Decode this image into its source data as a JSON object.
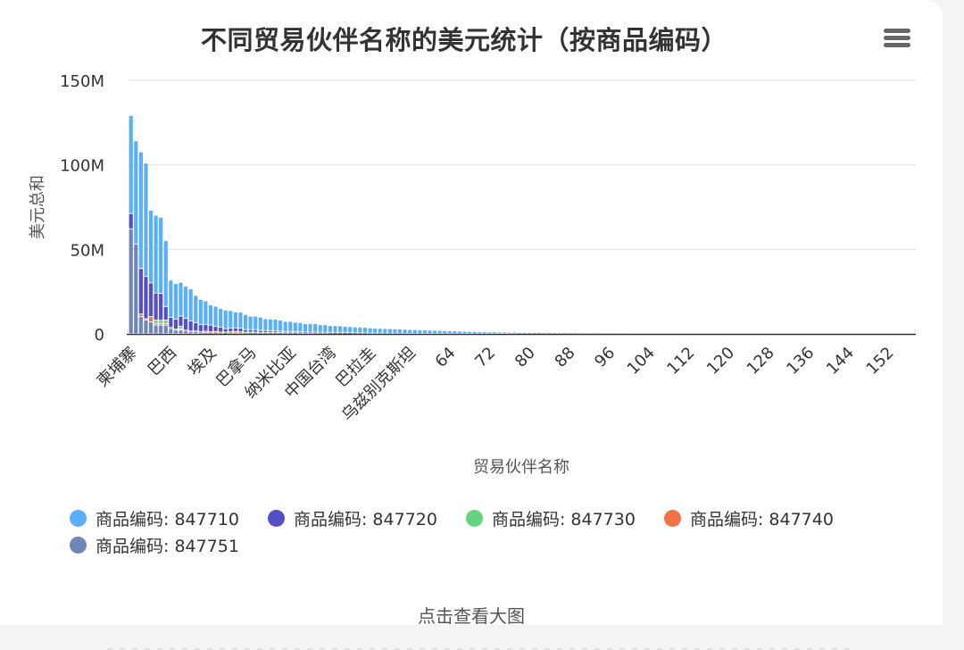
{
  "header": {
    "title": "不同贸易伙伴名称的美元统计（按商品编码）",
    "menu_icon": "hamburger-menu-icon"
  },
  "footer": {
    "view_large_label": "点击查看大图"
  },
  "chart_data": {
    "type": "bar",
    "stacked": true,
    "title": "不同贸易伙伴名称的美元统计（按商品编码）",
    "xlabel": "贸易伙伴名称",
    "ylabel": "美元总和",
    "ylim": [
      0,
      150000000
    ],
    "yticks": [
      "0",
      "50M",
      "100M",
      "150M"
    ],
    "grid": true,
    "legend_position": "bottom",
    "category_count": 160,
    "xtick_labels": [
      {
        "index": 0,
        "label": "柬埔寨"
      },
      {
        "index": 8,
        "label": "巴西"
      },
      {
        "index": 16,
        "label": "埃及"
      },
      {
        "index": 24,
        "label": "巴拿马"
      },
      {
        "index": 32,
        "label": "纳米比亚"
      },
      {
        "index": 40,
        "label": "中国台湾"
      },
      {
        "index": 48,
        "label": "巴拉圭"
      },
      {
        "index": 56,
        "label": "乌兹别克斯坦"
      },
      {
        "index": 64,
        "label": "64"
      },
      {
        "index": 72,
        "label": "72"
      },
      {
        "index": 80,
        "label": "80"
      },
      {
        "index": 88,
        "label": "88"
      },
      {
        "index": 96,
        "label": "96"
      },
      {
        "index": 104,
        "label": "104"
      },
      {
        "index": 112,
        "label": "112"
      },
      {
        "index": 120,
        "label": "120"
      },
      {
        "index": 128,
        "label": "128"
      },
      {
        "index": 136,
        "label": "136"
      },
      {
        "index": 144,
        "label": "144"
      },
      {
        "index": 152,
        "label": "152"
      }
    ],
    "series": [
      {
        "name": "商品编码: 847751",
        "color": "#6f86b9",
        "values": [
          62,
          53,
          10,
          8,
          7,
          5,
          5,
          5,
          3,
          2,
          2,
          1.5,
          1,
          1,
          0.8,
          0.6,
          0.5,
          0.4,
          0.3,
          0.3,
          0.2,
          0.2,
          0.2,
          0.1,
          0.1,
          0.1,
          0.1,
          0.1,
          0.1,
          0.1
        ]
      },
      {
        "name": "商品编码: 847740",
        "color": "#f07348",
        "values": [
          0,
          0,
          1.5,
          0.8,
          3,
          1,
          0.8,
          1,
          0.6,
          0.6,
          0.8,
          0.5,
          0.5,
          0.5,
          0.4,
          0.8,
          0.5,
          0.4,
          0.5,
          0.3,
          0.6,
          0.6,
          0.6,
          0.3,
          0.4,
          0.4,
          0.3,
          0.3,
          0.3,
          0.2,
          0.3,
          0.2,
          0.2,
          0.3,
          0.2,
          0.2,
          0.2,
          0.1,
          0.1,
          0.1,
          0.2,
          0.1,
          0.1,
          0.1,
          0.1
        ]
      },
      {
        "name": "商品编码: 847730",
        "color": "#66d37e",
        "values": [
          0,
          0,
          0,
          0,
          0,
          2,
          2,
          2,
          0,
          0,
          1.5,
          0,
          0,
          0,
          0,
          0,
          0,
          0.4,
          0,
          0.3,
          0.3,
          0.5,
          0.3,
          0.4,
          0.3,
          0.3,
          0.2,
          0.2,
          0.2,
          0.2,
          0.3,
          0.2,
          0.2,
          0.2,
          0.1,
          0.1,
          0.1,
          0.2,
          0.1,
          0.1,
          0.1,
          0.1,
          0.1,
          0.1,
          0.1,
          0.1,
          0.1,
          0.1
        ]
      },
      {
        "name": "商品编码: 847720",
        "color": "#544fc5",
        "values": [
          9,
          0,
          27,
          25,
          20,
          16,
          16,
          8,
          6,
          6,
          6,
          7,
          6,
          5,
          4,
          4,
          4,
          3,
          3,
          2,
          2,
          2,
          2,
          1.5,
          1.5,
          1.5,
          1.2,
          1.2,
          1,
          1,
          0.8,
          0.8,
          0.8,
          0.7,
          0.7,
          0.6,
          0.6,
          0.5,
          0.5,
          0.5,
          0.4,
          0.4,
          0.4,
          0.3,
          0.3,
          0.3,
          0.3,
          0.3,
          0.2,
          0.2,
          0.2,
          0.2,
          0.2,
          0.2,
          0.2,
          0.1,
          0.1,
          0.1,
          0.1,
          0.1,
          0.1,
          0.1,
          0.1,
          0.1,
          0.1,
          0.1
        ]
      },
      {
        "name": "商品编码: 847710",
        "color": "#5ab0f8",
        "values": [
          58,
          61,
          69,
          67,
          43,
          46,
          45,
          39,
          22,
          21,
          20,
          19,
          19,
          16,
          15,
          14,
          12,
          12,
          11,
          11,
          10.5,
          9.5,
          9.5,
          9,
          8,
          8,
          8,
          7,
          7,
          7,
          6.5,
          6,
          6,
          5.5,
          5.5,
          5,
          5,
          5,
          4.5,
          4.5,
          4,
          4,
          4,
          3.8,
          3.6,
          3.5,
          3.4,
          3.3,
          3.2,
          3,
          2.9,
          2.8,
          2.7,
          2.6,
          2.5,
          2.4,
          2.3,
          2.2,
          2.1,
          2.0,
          1.9,
          1.8,
          1.7,
          1.6,
          1.5,
          1.5,
          1.4,
          1.3,
          1.2,
          1.1,
          1.0,
          1.0,
          0.9,
          0.9,
          0.8,
          0.8,
          0.7,
          0.7,
          0.6,
          0.6,
          0.5,
          0.5,
          0.5,
          0.4,
          0.4,
          0.4,
          0.3,
          0.3,
          0.3,
          0.3,
          0.2,
          0.2,
          0.2,
          0.2,
          0.2,
          0.1,
          0.1,
          0.1,
          0.1,
          0.1
        ]
      }
    ]
  },
  "legend": {
    "items": [
      {
        "label": "商品编码: 847710",
        "color": "#5ab0f8"
      },
      {
        "label": "商品编码: 847720",
        "color": "#544fc5"
      },
      {
        "label": "商品编码: 847730",
        "color": "#66d37e"
      },
      {
        "label": "商品编码: 847740",
        "color": "#f07348"
      },
      {
        "label": "商品编码: 847751",
        "color": "#6f86b9"
      }
    ]
  }
}
